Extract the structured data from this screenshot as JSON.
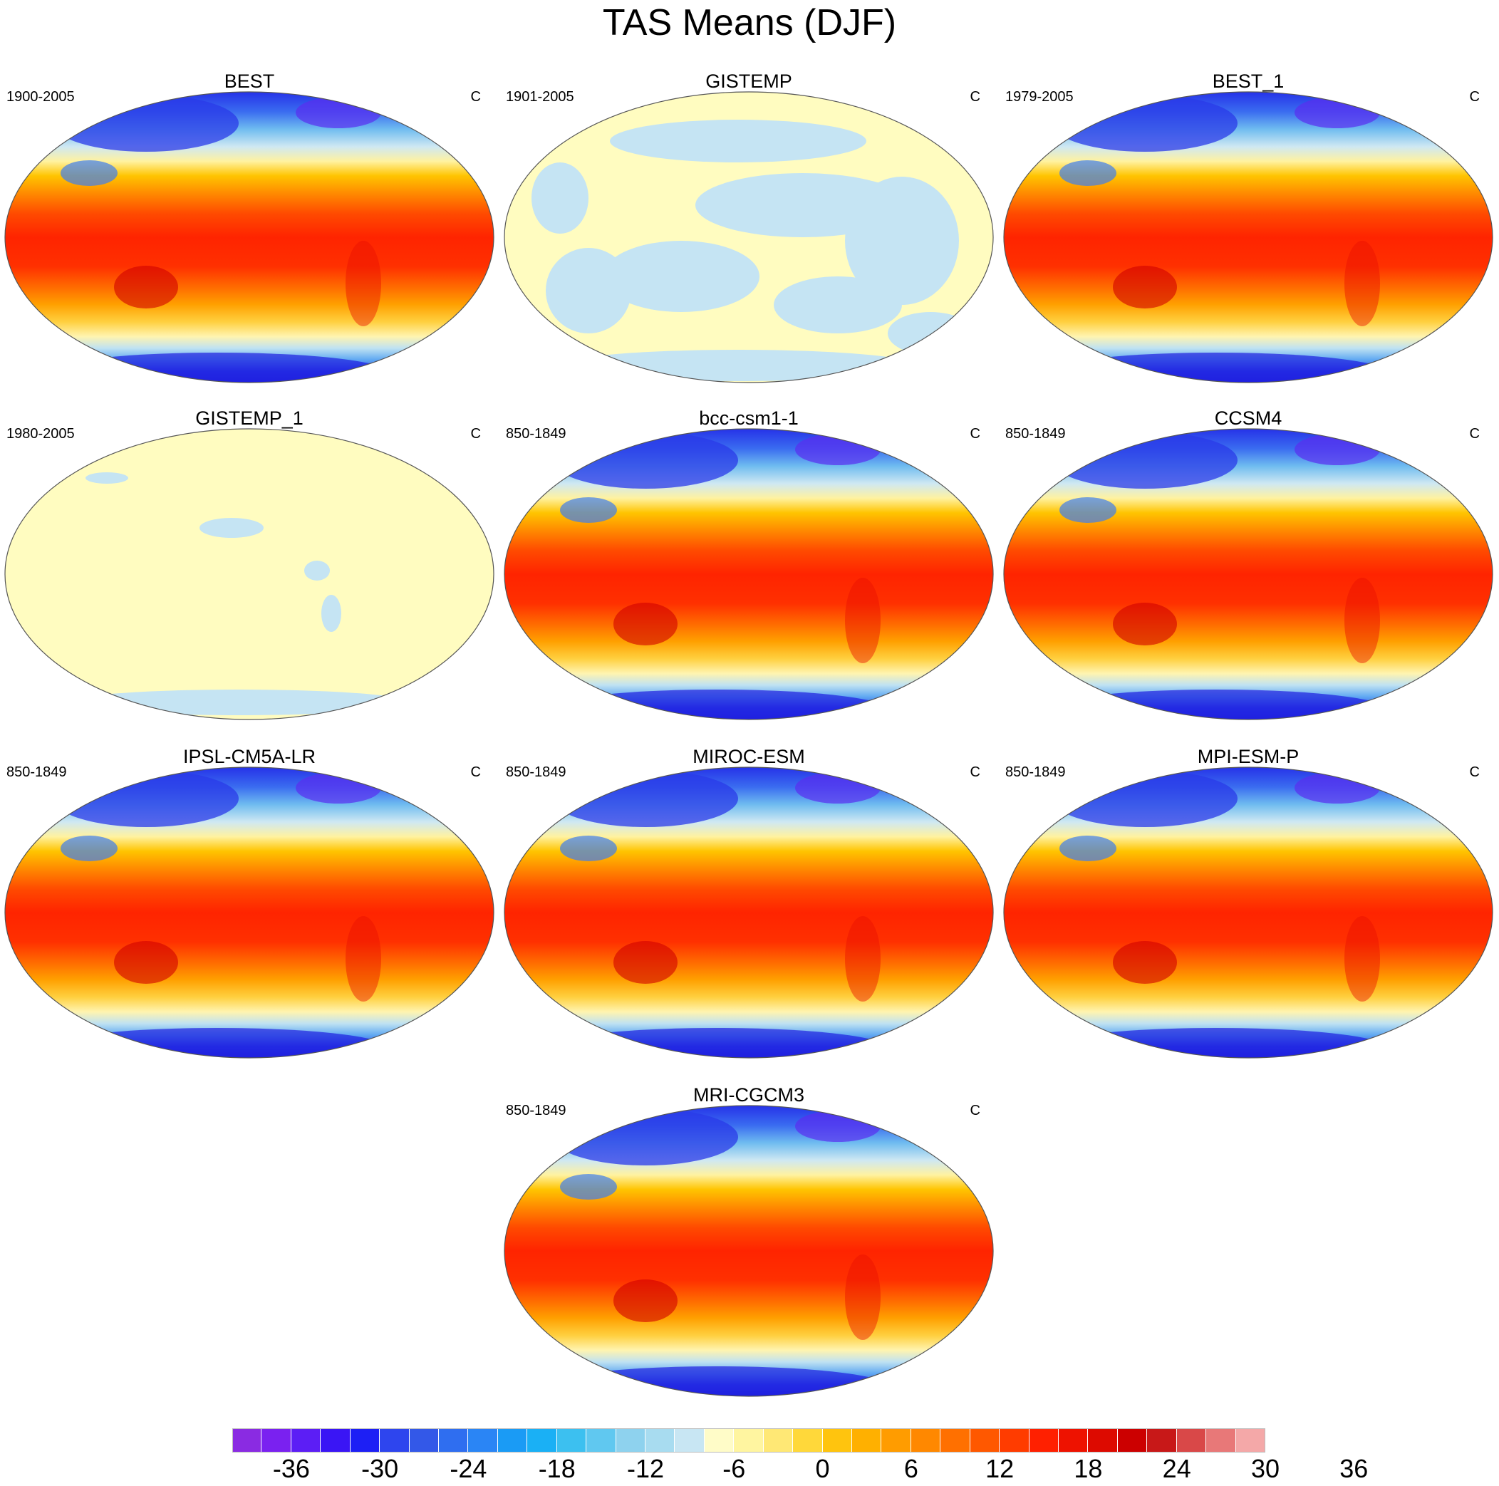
{
  "title": "TAS Means (DJF)",
  "unit": "C",
  "panels": [
    {
      "name": "BEST",
      "period": "1900-2005",
      "unit": "C",
      "style": "warm"
    },
    {
      "name": "GISTEMP",
      "period": "1901-2005",
      "unit": "C",
      "style": "flat-mixed"
    },
    {
      "name": "BEST_1",
      "period": "1979-2005",
      "unit": "C",
      "style": "warm"
    },
    {
      "name": "GISTEMP_1",
      "period": "1980-2005",
      "unit": "C",
      "style": "flat-yellow"
    },
    {
      "name": "bcc-csm1-1",
      "period": "850-1849",
      "unit": "C",
      "style": "warm"
    },
    {
      "name": "CCSM4",
      "period": "850-1849",
      "unit": "C",
      "style": "warm"
    },
    {
      "name": "IPSL-CM5A-LR",
      "period": "850-1849",
      "unit": "C",
      "style": "warm"
    },
    {
      "name": "MIROC-ESM",
      "period": "850-1849",
      "unit": "C",
      "style": "warm"
    },
    {
      "name": "MPI-ESM-P",
      "period": "850-1849",
      "unit": "C",
      "style": "warm"
    },
    {
      "name": "MRI-CGCM3",
      "period": "850-1849",
      "unit": "C",
      "style": "warm"
    }
  ],
  "colorbar": {
    "colors": [
      "#8a2be2",
      "#7a21f0",
      "#5c1ef5",
      "#3a15f5",
      "#1d1ff5",
      "#2e45ee",
      "#3358e8",
      "#2f6ef0",
      "#2a85f5",
      "#1a9bf5",
      "#1ab0f5",
      "#3cc0f0",
      "#60c8f0",
      "#8ed2ee",
      "#a8dcf0",
      "#c8e6f3",
      "#fffcc8",
      "#fff5a0",
      "#ffe875",
      "#ffd83a",
      "#ffc40e",
      "#ffb000",
      "#ff9c00",
      "#ff8800",
      "#ff7000",
      "#ff5800",
      "#ff3c00",
      "#ff2000",
      "#ee1200",
      "#dd0a00",
      "#cc0000",
      "#c81818",
      "#d94848",
      "#e87878",
      "#f4a8a8"
    ],
    "labels": [
      "-36",
      "-30",
      "-24",
      "-18",
      "-12",
      "-6",
      "0",
      "6",
      "12",
      "18",
      "24",
      "30",
      "36"
    ]
  }
}
